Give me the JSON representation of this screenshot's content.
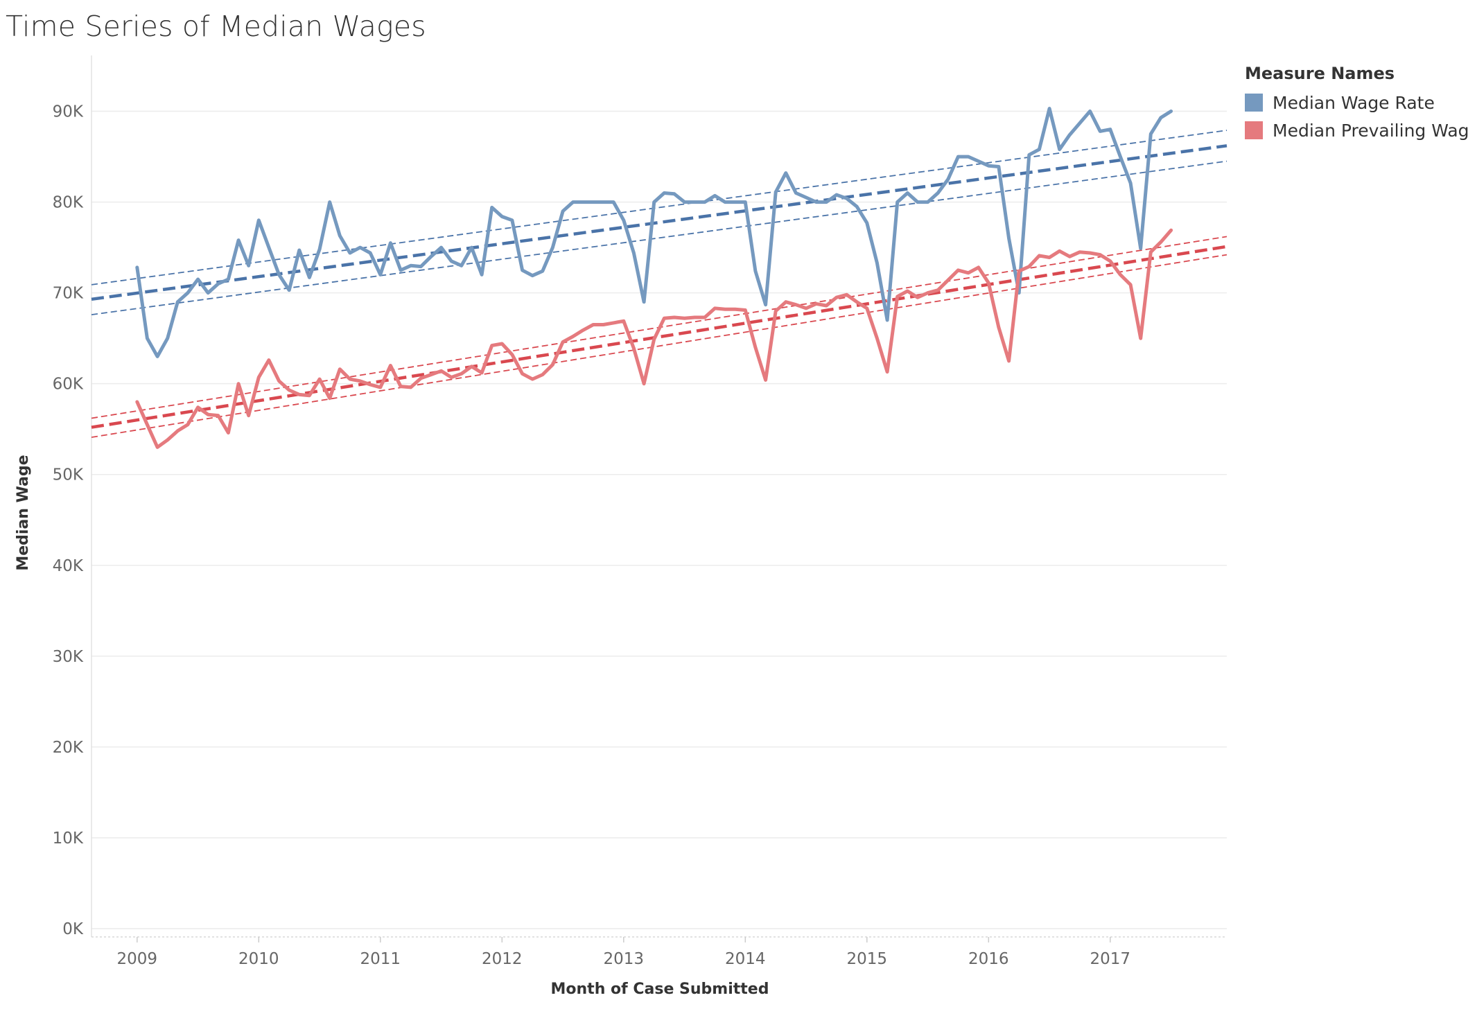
{
  "title": "Time Series of Median Wages",
  "legend": {
    "title": "Measure Names",
    "items": [
      {
        "label": "Median Wage Rate",
        "color": "#7599bf"
      },
      {
        "label": "Median Prevailing Wage",
        "color": "#e57a7e"
      }
    ]
  },
  "chart_data": {
    "type": "line",
    "title": "Time Series of Median Wages",
    "xlabel": "Month of Case Submitted",
    "ylabel": "Median Wage",
    "x_start": "2009-01",
    "x_ticks": [
      "2009",
      "2010",
      "2011",
      "2012",
      "2013",
      "2014",
      "2015",
      "2016",
      "2017"
    ],
    "y_ticks": [
      "0K",
      "10K",
      "20K",
      "30K",
      "40K",
      "50K",
      "60K",
      "70K",
      "80K",
      "90K"
    ],
    "ylim": [
      0,
      95000
    ],
    "xlim": [
      "2008-08",
      "2017-12"
    ],
    "grid": "horizontal",
    "legend_position": "right",
    "series": [
      {
        "name": "Median Wage Rate",
        "color": "#7599bf",
        "values": [
          72800,
          65000,
          63000,
          65000,
          69000,
          70000,
          71500,
          70000,
          71000,
          71500,
          75800,
          73000,
          78000,
          75000,
          72000,
          70300,
          74700,
          71700,
          74800,
          80000,
          76300,
          74400,
          75000,
          74400,
          72000,
          75500,
          72500,
          73000,
          72900,
          74000,
          75000,
          73500,
          73000,
          75000,
          72000,
          79400,
          78400,
          78000,
          72500,
          71900,
          72400,
          75000,
          79000,
          80000,
          80000,
          80000,
          80000,
          80000,
          78000,
          74400,
          69000,
          80000,
          81000,
          80900,
          80000,
          80000,
          80000,
          80700,
          80000,
          80000,
          80000,
          72400,
          68700,
          81100,
          83200,
          81000,
          80500,
          80000,
          80000,
          80800,
          80400,
          79500,
          77700,
          73300,
          67000,
          80000,
          81000,
          80000,
          80000,
          81000,
          82500,
          85000,
          85000,
          84500,
          84000,
          83900,
          76000,
          70000,
          85200,
          85800,
          90300,
          85800,
          87400,
          88700,
          90000,
          87800,
          88000,
          85000,
          82100,
          74900,
          87500,
          89300,
          90000
        ],
        "trend": {
          "start": 69300,
          "end": 86200,
          "band_upper_start": 70900,
          "band_upper_end": 87900,
          "band_lower_start": 67600,
          "band_lower_end": 84500
        }
      },
      {
        "name": "Median Prevailing Wage",
        "color": "#e57a7e",
        "values": [
          58000,
          55500,
          53000,
          53800,
          54800,
          55500,
          57400,
          56600,
          56500,
          54600,
          60000,
          56500,
          60700,
          62600,
          60300,
          59300,
          58800,
          58700,
          60500,
          58400,
          61600,
          60500,
          60300,
          59900,
          59600,
          62000,
          59700,
          59600,
          60600,
          61000,
          61400,
          60700,
          61100,
          61900,
          61200,
          64200,
          64400,
          63200,
          61100,
          60500,
          61000,
          62100,
          64600,
          65200,
          65900,
          66500,
          66500,
          66700,
          66900,
          63900,
          60000,
          64900,
          67200,
          67300,
          67200,
          67300,
          67300,
          68300,
          68200,
          68200,
          68100,
          64000,
          60400,
          68000,
          69000,
          68700,
          68300,
          68800,
          68600,
          69500,
          69800,
          69000,
          68300,
          65000,
          61300,
          69600,
          70200,
          69500,
          70000,
          70300,
          71400,
          72500,
          72200,
          72800,
          71100,
          66200,
          62500,
          72400,
          72900,
          74100,
          73900,
          74600,
          74000,
          74500,
          74400,
          74200,
          73500,
          72000,
          70900,
          65000,
          74500,
          75600,
          76900
        ],
        "trend": {
          "start": 55200,
          "end": 75100,
          "band_upper_start": 56200,
          "band_upper_end": 76200,
          "band_lower_start": 54100,
          "band_lower_end": 74200
        }
      }
    ]
  }
}
